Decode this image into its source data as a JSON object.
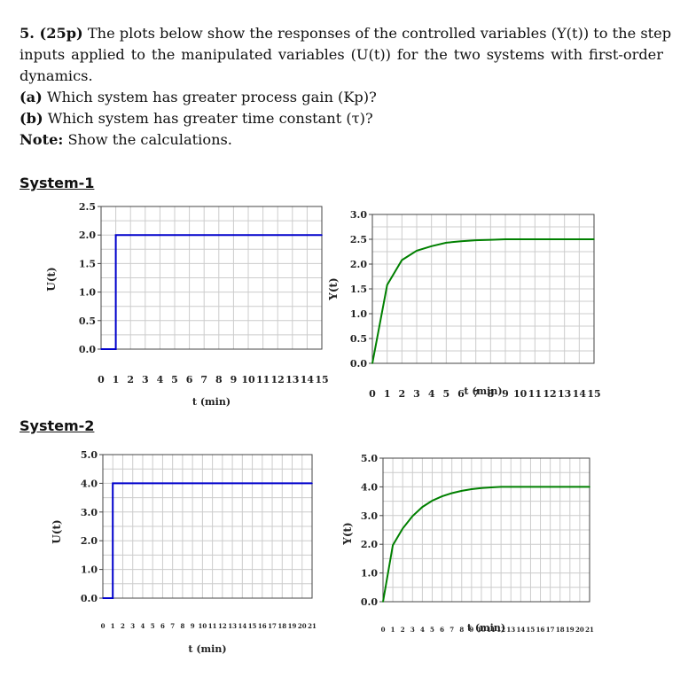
{
  "question": {
    "line1_number": "5. (25p)",
    "line1_text": " The plots below show the responses of the controlled variables (Y(t)) to the step",
    "line2": "inputs applied to the manipulated variables (U(t)) for the two systems with first-order",
    "line3": "dynamics.",
    "part_a_label": "(a)",
    "part_a_text": " Which system has greater process gain (Kp)?",
    "part_b_label": "(b)",
    "part_b_text": " Which system has greater time constant (τ)?",
    "note_label": "Note:",
    "note_text": " Show the calculations."
  },
  "systems": [
    {
      "title": "System-1"
    },
    {
      "title": "System-2"
    }
  ],
  "colors": {
    "input_line": "#0000cc",
    "output_line": "#008000",
    "grid": "#cccccc",
    "axis": "#444444"
  },
  "chart_data": [
    {
      "type": "line",
      "system": "System-1",
      "xlabel": "t (min)",
      "ylabel": "U(t)",
      "xlim": [
        0,
        15
      ],
      "ylim": [
        0,
        2.5
      ],
      "xticks": [
        "0",
        "1",
        "2",
        "3",
        "4",
        "5",
        "6",
        "7",
        "8",
        "9",
        "10",
        "11",
        "12",
        "13",
        "14",
        "15"
      ],
      "yticks": [
        "0.0",
        "0.5",
        "1.0",
        "1.5",
        "2.0",
        "2.5"
      ],
      "yticks_values": [
        0,
        0.5,
        1.0,
        1.5,
        2.0,
        2.5
      ],
      "series": [
        {
          "x": [
            0,
            1,
            1,
            15
          ],
          "y": [
            0,
            0,
            2.0,
            2.0
          ],
          "color": "#0000cc"
        }
      ]
    },
    {
      "type": "line",
      "system": "System-1",
      "xlabel": "t (min)",
      "ylabel": "Y(t)",
      "xlim": [
        0,
        15
      ],
      "ylim": [
        0,
        3.0
      ],
      "xticks": [
        "0",
        "1",
        "2",
        "3",
        "4",
        "5",
        "6",
        "7",
        "8",
        "9",
        "10",
        "11",
        "12",
        "13",
        "14",
        "15"
      ],
      "yticks": [
        "0.0",
        "0.5",
        "1.0",
        "1.5",
        "2.0",
        "2.5",
        "3.0"
      ],
      "yticks_values": [
        0,
        0.5,
        1.0,
        1.5,
        2.0,
        2.5,
        3.0
      ],
      "series": [
        {
          "x": [
            0,
            1,
            2,
            3,
            4,
            5,
            6,
            7,
            8,
            9,
            10,
            11,
            12,
            13,
            14,
            15
          ],
          "y": [
            0,
            1.58,
            2.08,
            2.27,
            2.36,
            2.43,
            2.46,
            2.48,
            2.49,
            2.5,
            2.5,
            2.5,
            2.5,
            2.5,
            2.5,
            2.5
          ],
          "color": "#008000"
        }
      ]
    },
    {
      "type": "line",
      "system": "System-2",
      "xlabel": "t (min)",
      "ylabel": "U(t)",
      "xlim": [
        0,
        21
      ],
      "ylim": [
        0,
        5.0
      ],
      "xticks": [
        "0",
        "1",
        "2",
        "3",
        "4",
        "5",
        "6",
        "7",
        "8",
        "9",
        "10",
        "11",
        "12",
        "13",
        "14",
        "15",
        "16",
        "17",
        "18",
        "19",
        "20",
        "21"
      ],
      "yticks": [
        "0.0",
        "1.0",
        "2.0",
        "3.0",
        "4.0",
        "5.0"
      ],
      "yticks_values": [
        0,
        1.0,
        2.0,
        3.0,
        4.0,
        5.0
      ],
      "series": [
        {
          "x": [
            0,
            1,
            1,
            21
          ],
          "y": [
            0,
            0,
            4.0,
            4.0
          ],
          "color": "#0000cc"
        }
      ]
    },
    {
      "type": "line",
      "system": "System-2",
      "xlabel": "t (min)",
      "ylabel": "Y(t)",
      "xlim": [
        0,
        21
      ],
      "ylim": [
        0,
        5.0
      ],
      "xticks": [
        "0",
        "1",
        "2",
        "3",
        "4",
        "5",
        "6",
        "7",
        "8",
        "9",
        "10",
        "11",
        "12",
        "13",
        "14",
        "15",
        "16",
        "17",
        "18",
        "19",
        "20",
        "21"
      ],
      "yticks": [
        "0.0",
        "1.0",
        "2.0",
        "3.0",
        "4.0",
        "5.0"
      ],
      "yticks_values": [
        0,
        1.0,
        2.0,
        3.0,
        4.0,
        5.0
      ],
      "series": [
        {
          "x": [
            0,
            1,
            2,
            3,
            4,
            5,
            6,
            7,
            8,
            9,
            10,
            11,
            12,
            13,
            14,
            15,
            16,
            17,
            18,
            19,
            20,
            21
          ],
          "y": [
            0,
            1.97,
            2.55,
            2.98,
            3.3,
            3.52,
            3.67,
            3.78,
            3.86,
            3.92,
            3.96,
            3.98,
            4.0,
            4.0,
            4.0,
            4.0,
            4.0,
            4.0,
            4.0,
            4.0,
            4.0,
            4.0
          ],
          "color": "#008000"
        }
      ]
    }
  ]
}
